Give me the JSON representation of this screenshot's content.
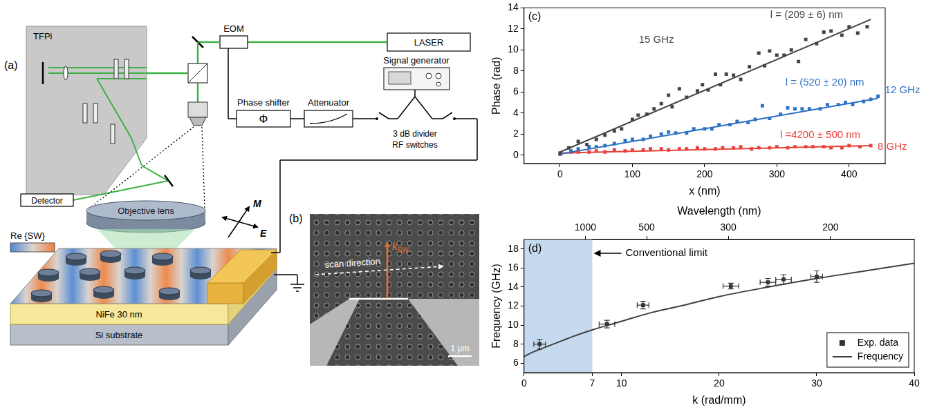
{
  "setup_diagram": {
    "panel": "(a)",
    "tfpi": "TFPi",
    "eom": "EOM",
    "laser": "LASER",
    "signal_generator": "Signal generator",
    "phase_shifter": "Phase shifter",
    "phase_symbol": "Φ",
    "attenuator": "Attenuator",
    "divider": "3 dB divider",
    "switches": "RF switches",
    "detector": "Detector",
    "objective": "Objective lens",
    "wave_label": "Re {SW}",
    "magnetization": "M",
    "field": "E",
    "film": "NiFe 30 nm",
    "substrate": "Si substrate"
  },
  "sem_image": {
    "panel": "(b)",
    "scan": "scan direction",
    "wavevector": "k",
    "wavevector_sub": "SW",
    "scale_bar": "1 μm"
  },
  "chart_data": [
    {
      "type": "scatter",
      "panel": "(c)",
      "x_label": "x (nm)",
      "y_label": "Phase (rad)",
      "xlim": [
        -50,
        450
      ],
      "xticks": [
        0,
        100,
        200,
        300,
        400
      ],
      "ylim": [
        -0.8,
        14
      ],
      "yticks": [
        0,
        2,
        4,
        6,
        8,
        10,
        12,
        14
      ],
      "grid": false,
      "series": [
        {
          "name": "15 GHz",
          "color": "#444444",
          "marker": "square",
          "fit_label": "l = (209 ± 6) nm",
          "x": [
            0,
            12,
            25,
            37,
            50,
            62,
            75,
            85,
            100,
            108,
            120,
            130,
            140,
            150,
            155,
            165,
            175,
            190,
            197,
            205,
            215,
            222,
            230,
            240,
            250,
            262,
            275,
            283,
            290,
            300,
            310,
            320,
            330,
            340,
            355,
            365,
            375,
            390,
            400,
            412,
            425
          ],
          "values": [
            0.2,
            0.7,
            1.3,
            1.0,
            1.5,
            1.9,
            2.3,
            2.5,
            3.4,
            3.8,
            3.9,
            4.4,
            4.9,
            5.7,
            4.6,
            6.3,
            5.5,
            6.1,
            6.7,
            6.2,
            7.7,
            6.7,
            7.7,
            7.6,
            7.2,
            8.4,
            9.7,
            8.5,
            9.9,
            9.5,
            9.5,
            10.0,
            8.9,
            11.0,
            10.6,
            11.7,
            11.8,
            11.4,
            12.2,
            11.6,
            12.2
          ],
          "fit": {
            "x": [
              0,
              430
            ],
            "values": [
              0.3,
              12.9
            ]
          }
        },
        {
          "name": "12 GHz",
          "color": "#2f72c4",
          "marker": "square",
          "fit_label": "l = (520 ± 20) nm",
          "x": [
            0,
            15,
            25,
            40,
            50,
            62,
            75,
            90,
            100,
            115,
            125,
            140,
            150,
            160,
            175,
            185,
            200,
            210,
            220,
            235,
            245,
            260,
            270,
            280,
            290,
            305,
            315,
            325,
            335,
            345,
            360,
            370,
            385,
            395,
            405,
            420,
            430,
            440
          ],
          "values": [
            0.1,
            0.4,
            0.6,
            0.8,
            0.8,
            0.9,
            1.1,
            1.4,
            1.5,
            1.5,
            1.8,
            2.0,
            2.2,
            2.1,
            2.1,
            2.5,
            2.5,
            2.5,
            2.9,
            2.9,
            3.2,
            3.1,
            3.4,
            4.7,
            3.5,
            3.9,
            4.5,
            4.4,
            4.4,
            4.4,
            4.4,
            4.8,
            4.8,
            5.0,
            4.8,
            5.1,
            5.3,
            5.6
          ],
          "fit": {
            "x": [
              0,
              440
            ],
            "values": [
              0.1,
              5.4
            ]
          }
        },
        {
          "name": "8 GHz",
          "color": "#e8423b",
          "marker": "square",
          "fit_label": "l =4200 ± 500 nm",
          "x": [
            0,
            15,
            25,
            40,
            50,
            62,
            75,
            90,
            100,
            115,
            125,
            140,
            150,
            165,
            175,
            190,
            200,
            215,
            225,
            240,
            250,
            265,
            275,
            290,
            300,
            315,
            325,
            340,
            350,
            365,
            375,
            390,
            400,
            415,
            430
          ],
          "values": [
            0.1,
            0.3,
            0.3,
            0.3,
            0.4,
            0.3,
            0.5,
            0.4,
            0.5,
            0.5,
            0.6,
            0.6,
            0.5,
            0.6,
            0.6,
            0.7,
            0.6,
            0.6,
            0.7,
            0.7,
            0.8,
            0.6,
            0.7,
            0.7,
            0.8,
            0.7,
            0.8,
            0.8,
            0.8,
            0.8,
            0.7,
            0.7,
            0.9,
            0.8,
            0.9
          ],
          "fit": {
            "x": [
              0,
              430
            ],
            "values": [
              0.2,
              0.9
            ]
          }
        }
      ]
    },
    {
      "type": "scatter",
      "panel": "(d)",
      "x_label": "k (rad/mm)",
      "x2_label": "Wavelength (nm)",
      "y_label": "Frequency (GHz)",
      "xlim": [
        0,
        40
      ],
      "xticks": [
        0,
        7,
        10,
        20,
        30,
        40
      ],
      "x2lim": [
        0,
        40
      ],
      "x2ticks": [
        {
          "value": 6.283,
          "label": "1000"
        },
        {
          "value": 12.566,
          "label": "500"
        },
        {
          "value": 20.944,
          "label": "300"
        },
        {
          "value": 31.416,
          "label": "200"
        }
      ],
      "ylim": [
        5,
        19
      ],
      "yticks": [
        6,
        8,
        10,
        12,
        14,
        16,
        18
      ],
      "grid": false,
      "legend": "lower right",
      "shaded_region": {
        "x": [
          0,
          7
        ],
        "color": "#c6daef",
        "label": "Conventional limit"
      },
      "series": [
        {
          "name": "Exp. data",
          "type": "scatter",
          "marker": "square",
          "color": "#333333",
          "x": [
            1.6,
            8.5,
            12.2,
            21.2,
            25.0,
            26.6,
            30.0
          ],
          "values": [
            8.0,
            10.1,
            12.1,
            14.1,
            14.5,
            14.8,
            15.1
          ],
          "x_errors": [
            0.6,
            0.8,
            0.6,
            0.8,
            0.8,
            0.8,
            0.6
          ],
          "y_errors": [
            0.5,
            0.4,
            0.4,
            0.3,
            0.4,
            0.5,
            0.6
          ]
        },
        {
          "name": "Frequency",
          "type": "line",
          "color": "#404040",
          "x": [
            0,
            1,
            2,
            3,
            4,
            5,
            7,
            10,
            13,
            16,
            20,
            25,
            30,
            35,
            40
          ],
          "values": [
            6.7,
            7.2,
            7.6,
            8.0,
            8.4,
            8.8,
            9.5,
            10.4,
            11.3,
            12.0,
            13.0,
            14.0,
            14.9,
            15.7,
            16.5
          ]
        }
      ]
    }
  ]
}
